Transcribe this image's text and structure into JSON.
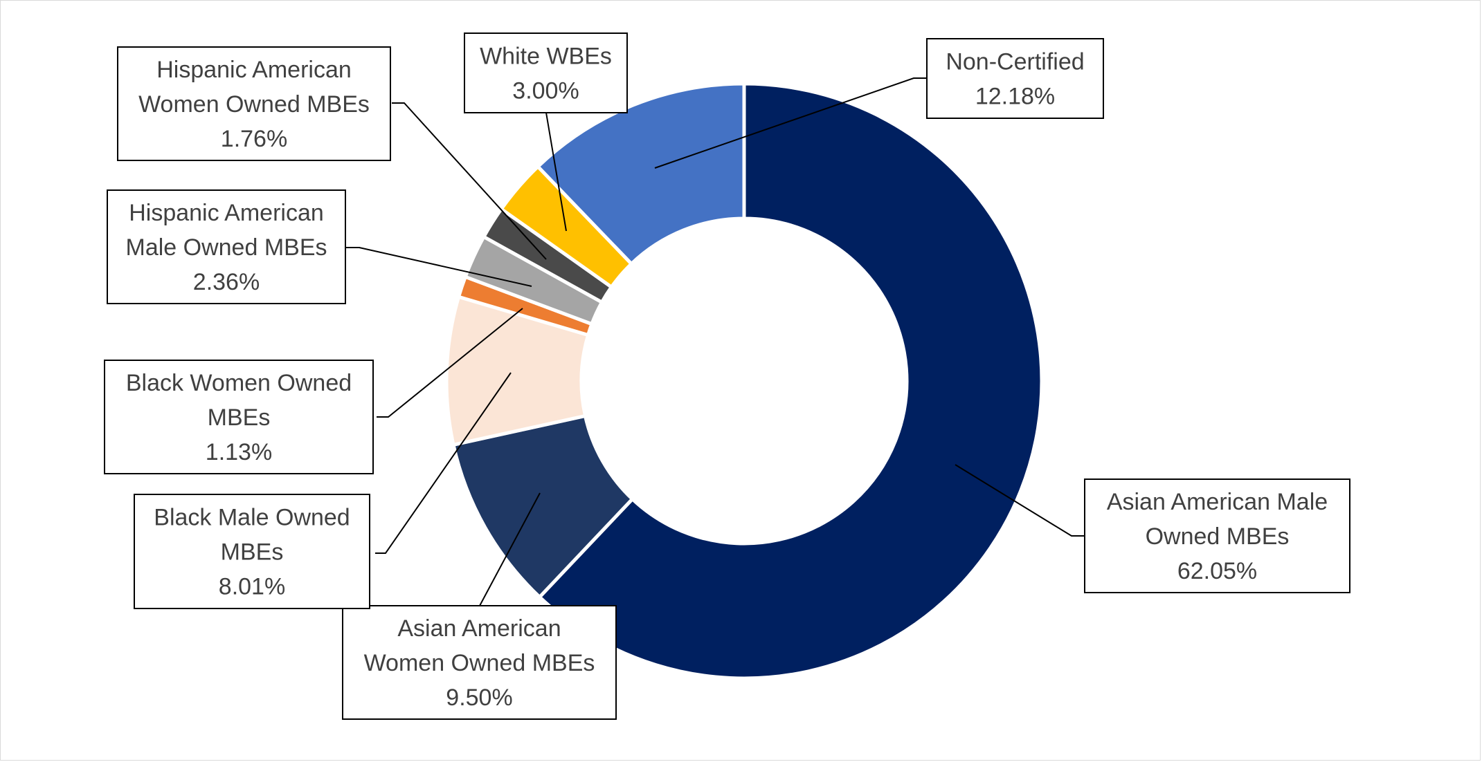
{
  "chart_data": {
    "type": "pie",
    "variant": "donut",
    "title": "",
    "legend": "none",
    "data_labels": "callout boxes with leader lines (category name and percentage)",
    "slices": [
      {
        "name": "Asian American Male Owned MBEs",
        "label_lines": [
          "Asian American Male",
          "Owned MBEs"
        ],
        "value": 62.05,
        "display": "62.05%",
        "color": "#002060"
      },
      {
        "name": "Asian American Women Owned MBEs",
        "label_lines": [
          "Asian American",
          "Women Owned MBEs"
        ],
        "value": 9.5,
        "display": "9.50%",
        "color": "#1f3864"
      },
      {
        "name": "Black Male Owned MBEs",
        "label_lines": [
          "Black Male Owned",
          "MBEs"
        ],
        "value": 8.01,
        "display": "8.01%",
        "color": "#fbe5d6"
      },
      {
        "name": "Black Women Owned MBEs",
        "label_lines": [
          "Black Women Owned",
          "MBEs"
        ],
        "value": 1.13,
        "display": "1.13%",
        "color": "#ed7d31"
      },
      {
        "name": "Hispanic American Male Owned MBEs",
        "label_lines": [
          "Hispanic American",
          "Male Owned MBEs"
        ],
        "value": 2.36,
        "display": "2.36%",
        "color": "#a5a5a5"
      },
      {
        "name": "Hispanic American Women Owned MBEs",
        "label_lines": [
          "Hispanic American",
          "Women Owned MBEs"
        ],
        "value": 1.76,
        "display": "1.76%",
        "color": "#4a4a4a"
      },
      {
        "name": "White WBEs",
        "label_lines": [
          "White WBEs"
        ],
        "value": 3.0,
        "display": "3.00%",
        "color": "#ffc000"
      },
      {
        "name": "Non-Certified",
        "label_lines": [
          "Non-Certified"
        ],
        "value": 12.18,
        "display": "12.18%",
        "color": "#4472c4"
      }
    ]
  }
}
